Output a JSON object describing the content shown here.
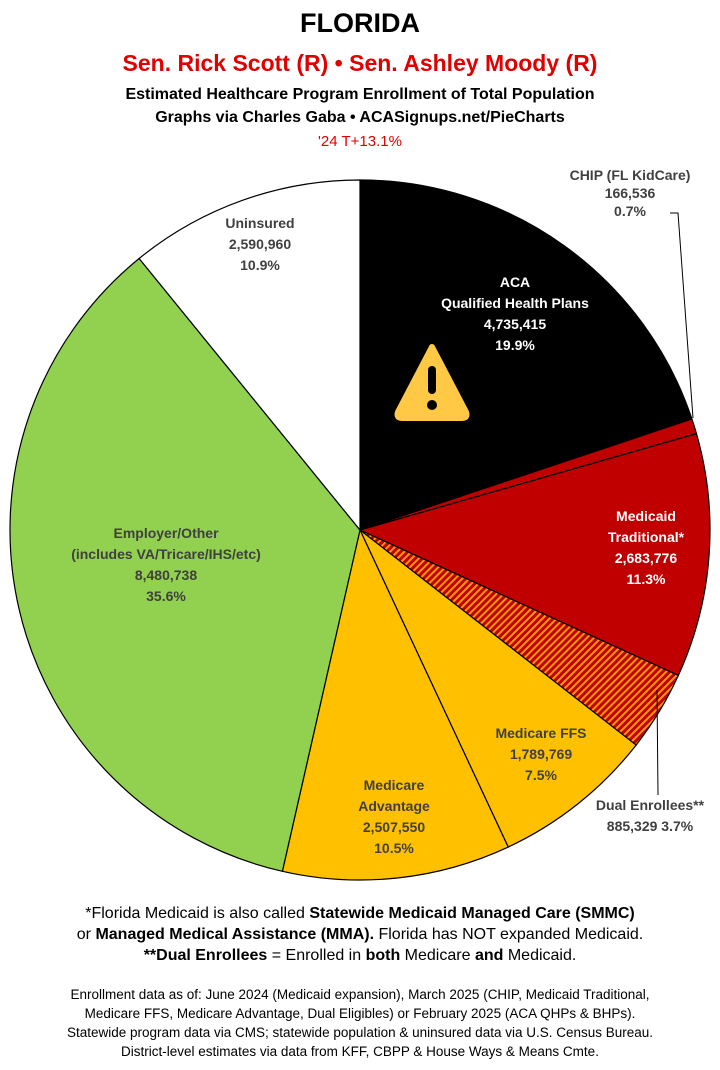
{
  "header": {
    "title": "FLORIDA",
    "senators": "Sen. Rick Scott (R) • Sen. Ashley Moody (R)",
    "subtitle1": "Estimated Healthcare Program Enrollment of Total Population",
    "subtitle2": "Graphs via Charles Gaba   •   ACASignups.net/PieCharts",
    "subtitle3": "'24 T+13.1%"
  },
  "chart_data": {
    "type": "pie",
    "start": "top, clockwise",
    "slices": [
      {
        "label": [
          "ACA",
          "Qualified Health Plans"
        ],
        "value": 4735415,
        "value_text": "4,735,415",
        "pct": "19.9%",
        "color": "#000000",
        "text_color": "#ffffff",
        "icon": "warning-icon"
      },
      {
        "label": [
          "CHIP (FL KidCare)"
        ],
        "value": 166536,
        "value_text": "166,536",
        "pct": "0.7%",
        "color": "#c00000",
        "text_color": "#404040"
      },
      {
        "label": [
          "Medicaid",
          "Traditional*"
        ],
        "value": 2683776,
        "value_text": "2,683,776",
        "pct": "11.3%",
        "color": "#c00000",
        "text_color": "#ffffff"
      },
      {
        "label": [
          "Dual Enrollees**"
        ],
        "value": 885329,
        "value_text": "885,329",
        "pct": "3.7%",
        "color": "#c00000",
        "hatch": "#ff9900",
        "text_color": "#404040"
      },
      {
        "label": [
          "Medicare FFS"
        ],
        "value": 1789769,
        "value_text": "1,789,769",
        "pct": "7.5%",
        "color": "#ffc000",
        "text_color": "#404040"
      },
      {
        "label": [
          "Medicare",
          "Advantage"
        ],
        "value": 2507550,
        "value_text": "2,507,550",
        "pct": "10.5%",
        "color": "#ffc000",
        "text_color": "#404040"
      },
      {
        "label": [
          "Employer/Other",
          "(includes VA/Tricare/IHS/etc)"
        ],
        "value": 8480738,
        "value_text": "8,480,738",
        "pct": "35.6%",
        "color": "#92d050",
        "text_color": "#404040"
      },
      {
        "label": [
          "Uninsured"
        ],
        "value": 2590960,
        "value_text": "2,590,960",
        "pct": "10.9%",
        "color": "#ffffff",
        "text_color": "#404040"
      }
    ]
  },
  "notes": {
    "line1_a": "*Florida Medicaid is also called ",
    "line1_b": "Statewide Medicaid Managed Care (SMMC)",
    "line2_a": "or ",
    "line2_b": "Managed Medical Assistance (MMA).",
    "line2_c": " Florida has NOT expanded Medicaid.",
    "line3_a": "**Dual Enrollees",
    "line3_b": " = Enrolled in ",
    "line3_c": "both",
    "line3_d": " Medicare ",
    "line3_e": "and",
    "line3_f": " Medicaid."
  },
  "sources": [
    "Enrollment data as of: June 2024 (Medicaid expansion), March 2025 (CHIP, Medicaid Traditional,",
    "Medicare FFS, Medicare Advantage, Dual Eligibles) or February 2025 (ACA QHPs & BHPs).",
    "Statewide program data via CMS; statewide population & uninsured data via U.S. Census Bureau.",
    "District-level estimates via data from KFF, CBPP & House Ways & Means Cmte."
  ]
}
